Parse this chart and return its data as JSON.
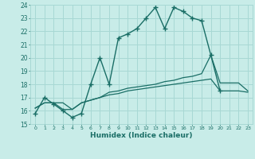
{
  "xlabel": "Humidex (Indice chaleur)",
  "bg_color": "#c8ece8",
  "grid_color": "#a8d8d4",
  "line_color": "#1a6e66",
  "xlim": [
    -0.5,
    23.5
  ],
  "ylim": [
    15,
    24
  ],
  "series1_x": [
    0,
    1,
    2,
    3,
    4,
    5,
    6,
    7,
    8,
    9,
    10,
    11,
    12,
    13,
    14,
    15,
    16,
    17,
    18,
    19,
    20,
    21,
    22,
    23
  ],
  "series1_y": [
    15.8,
    17.0,
    16.5,
    16.0,
    15.5,
    15.8,
    18.0,
    20.0,
    18.0,
    21.5,
    21.8,
    22.2,
    23.0,
    23.8,
    22.2,
    23.8,
    23.5,
    23.0,
    22.8,
    20.2,
    17.5,
    null,
    null,
    null
  ],
  "series2_x": [
    0,
    1,
    2,
    3,
    4,
    5,
    6,
    7,
    8,
    9,
    10,
    11,
    12,
    13,
    14,
    15,
    16,
    17,
    18,
    19,
    20,
    21,
    22,
    23
  ],
  "series2_y": [
    16.2,
    16.6,
    16.6,
    16.6,
    16.1,
    16.6,
    16.8,
    17.0,
    17.4,
    17.5,
    17.7,
    17.8,
    17.9,
    18.0,
    18.2,
    18.3,
    18.5,
    18.6,
    18.8,
    20.2,
    18.1,
    18.1,
    18.1,
    17.5
  ],
  "series3_x": [
    0,
    1,
    2,
    3,
    4,
    5,
    6,
    7,
    8,
    9,
    10,
    11,
    12,
    13,
    14,
    15,
    16,
    17,
    18,
    19,
    20,
    21,
    22,
    23
  ],
  "series3_y": [
    16.2,
    16.6,
    16.6,
    16.1,
    16.1,
    16.6,
    16.8,
    17.0,
    17.2,
    17.3,
    17.5,
    17.6,
    17.7,
    17.8,
    17.9,
    18.0,
    18.1,
    18.2,
    18.3,
    18.4,
    17.5,
    17.5,
    17.5,
    17.4
  ]
}
